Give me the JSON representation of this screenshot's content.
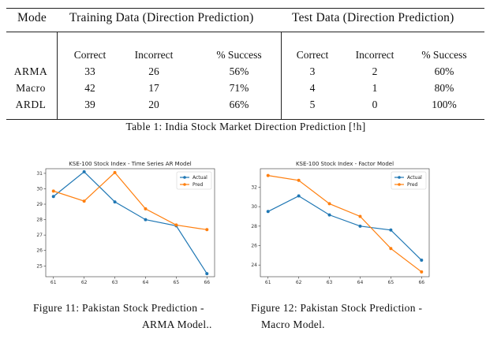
{
  "table": {
    "headers": {
      "mode": "Mode",
      "training": "Training Data (Direction Prediction)",
      "test": "Test Data (Direction Prediction)"
    },
    "subheaders": [
      "Correct",
      "Incorrect",
      "% Success",
      "Correct",
      "Incorrect",
      "% Success"
    ],
    "rows": [
      {
        "label": "ARMA",
        "cells": [
          "33",
          "26",
          "56%",
          "3",
          "2",
          "60%"
        ]
      },
      {
        "label": "Macro",
        "cells": [
          "42",
          "17",
          "71%",
          "4",
          "1",
          "80%"
        ]
      },
      {
        "label": "ARDL",
        "cells": [
          "39",
          "20",
          "66%",
          "5",
          "0",
          "100%"
        ]
      }
    ],
    "caption": "Table 1: India Stock Market Direction Prediction [!h]"
  },
  "figures": {
    "fig11": {
      "caption_line1": "Figure 11: Pakistan Stock Prediction -",
      "caption_line2": "ARMA Model.."
    },
    "fig12": {
      "caption_line1": "Figure 12: Pakistan Stock Prediction -",
      "caption_line2": "Macro Model."
    }
  },
  "colors": {
    "actual": "#1f77b4",
    "pred": "#ff7f0e"
  },
  "chart_data": [
    {
      "type": "line",
      "title": "KSE-100 Stock Index - Time Series AR Model",
      "x": [
        61,
        62,
        63,
        64,
        65,
        66
      ],
      "xticks": [
        "61",
        "62",
        "63",
        "64",
        "65",
        "66"
      ],
      "yticks": [
        "25",
        "26",
        "27",
        "28",
        "29",
        "30",
        "31"
      ],
      "ylim": [
        24.3,
        31.3
      ],
      "legend": "top-right",
      "series": [
        {
          "name": "Actual",
          "values": [
            29.5,
            31.1,
            29.15,
            28.0,
            27.6,
            24.5
          ]
        },
        {
          "name": "Pred",
          "values": [
            29.85,
            29.2,
            31.05,
            28.7,
            27.65,
            27.35
          ]
        }
      ]
    },
    {
      "type": "line",
      "title": "KSE-100 Stock Index - Factor Model",
      "x": [
        61,
        62,
        63,
        64,
        65,
        66
      ],
      "xticks": [
        "61",
        "62",
        "63",
        "64",
        "65",
        "66"
      ],
      "yticks": [
        "24",
        "26",
        "28",
        "30",
        "32"
      ],
      "ylim": [
        22.8,
        33.9
      ],
      "legend": "top-right",
      "series": [
        {
          "name": "Actual",
          "values": [
            29.5,
            31.1,
            29.15,
            28.0,
            27.6,
            24.5
          ]
        },
        {
          "name": "Pred",
          "values": [
            33.2,
            32.7,
            30.3,
            29.0,
            25.7,
            23.3
          ]
        }
      ]
    }
  ]
}
